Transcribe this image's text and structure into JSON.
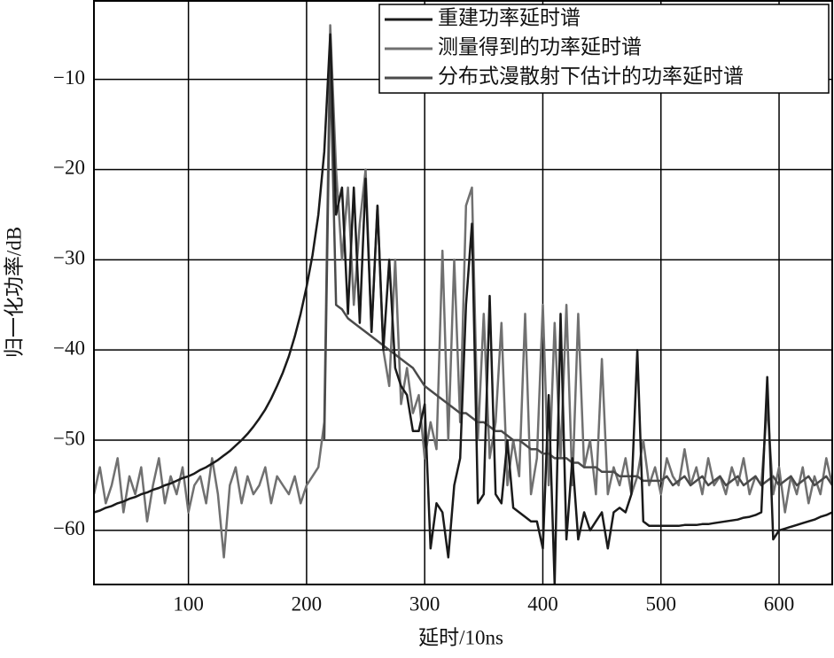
{
  "chart_data": {
    "type": "line",
    "x_label": "延时/10ns",
    "y_label": "归一化功率/dB",
    "x": [
      20,
      25,
      30,
      35,
      40,
      45,
      50,
      55,
      60,
      65,
      70,
      75,
      80,
      85,
      90,
      95,
      100,
      105,
      110,
      115,
      120,
      125,
      130,
      135,
      140,
      145,
      150,
      155,
      160,
      165,
      170,
      175,
      180,
      185,
      190,
      195,
      200,
      205,
      210,
      215,
      220,
      225,
      230,
      235,
      240,
      245,
      250,
      255,
      260,
      265,
      270,
      275,
      280,
      285,
      290,
      295,
      300,
      305,
      310,
      315,
      320,
      325,
      330,
      335,
      340,
      345,
      350,
      355,
      360,
      365,
      370,
      375,
      380,
      385,
      390,
      395,
      400,
      405,
      410,
      415,
      420,
      425,
      430,
      435,
      440,
      445,
      450,
      455,
      460,
      465,
      470,
      475,
      480,
      485,
      490,
      495,
      500,
      505,
      510,
      515,
      520,
      525,
      530,
      535,
      540,
      545,
      550,
      555,
      560,
      565,
      570,
      575,
      580,
      585,
      590,
      595,
      600,
      605,
      610,
      615,
      620,
      625,
      630,
      635,
      640,
      645
    ],
    "series": [
      {
        "name": "重建功率延时谱",
        "color": "#1a1a1a",
        "values": [
          -58,
          -57.8,
          -57.5,
          -57.3,
          -57,
          -56.8,
          -56.5,
          -56.3,
          -56,
          -55.8,
          -55.5,
          -55.3,
          -55,
          -54.8,
          -54.5,
          -54.2,
          -54,
          -53.7,
          -53.3,
          -53,
          -52.6,
          -52.2,
          -51.7,
          -51.2,
          -50.6,
          -50,
          -49.3,
          -48.5,
          -47.6,
          -46.6,
          -45.4,
          -44,
          -42.5,
          -40.7,
          -38.5,
          -36,
          -33,
          -29.5,
          -25,
          -18,
          -5,
          -25,
          -22,
          -36,
          -22,
          -37,
          -21,
          -38,
          -24,
          -40,
          -30,
          -42,
          -44,
          -45,
          -49,
          -49,
          -46,
          -62,
          -57,
          -58,
          -63,
          -55,
          -52,
          -35,
          -26,
          -57,
          -56,
          -34,
          -56,
          -57,
          -50,
          -57.5,
          -58,
          -58.5,
          -59,
          -59,
          -62,
          -45,
          -66,
          -36,
          -61,
          -52,
          -61,
          -58,
          -60,
          -59,
          -58,
          -62,
          -58,
          -57.5,
          -58,
          -56,
          -40,
          -59,
          -59.5,
          -59.5,
          -59.5,
          -59.5,
          -59.5,
          -59.5,
          -59.4,
          -59.4,
          -59.4,
          -59.3,
          -59.3,
          -59.2,
          -59.1,
          -59,
          -58.9,
          -58.8,
          -58.6,
          -58.5,
          -58.3,
          -58,
          -43,
          -61,
          -60,
          -59.8,
          -59.6,
          -59.4,
          -59.2,
          -59,
          -58.8,
          -58.5,
          -58.3,
          -58
        ]
      },
      {
        "name": "测量得到的功率延时谱",
        "color": "#707070",
        "values": [
          -56,
          -53,
          -57,
          -55,
          -52,
          -58,
          -54,
          -56,
          -53,
          -59,
          -55,
          -52,
          -57,
          -54,
          -56,
          -53,
          -58,
          -55,
          -54,
          -57,
          -52,
          -56,
          -63,
          -55,
          -53,
          -57,
          -54,
          -56,
          -55,
          -53,
          -57,
          -54,
          -55,
          -56,
          -54,
          -57,
          -55,
          -54,
          -53,
          -48,
          -4,
          -20,
          -30,
          -22,
          -35,
          -26,
          -20,
          -38,
          -24,
          -40,
          -44,
          -30,
          -46,
          -42,
          -47,
          -45,
          -52,
          -48,
          -51,
          -29,
          -50,
          -30,
          -48,
          -24,
          -22,
          -50,
          -36,
          -52,
          -48,
          -37,
          -55,
          -50,
          -54,
          -36,
          -56,
          -52,
          -35,
          -55,
          -37,
          -52,
          -35,
          -55,
          -36,
          -53,
          -50,
          -56,
          -41,
          -56,
          -53,
          -55,
          -52,
          -56,
          -54,
          -50,
          -55,
          -53,
          -56,
          -52,
          -54,
          -55,
          -51,
          -55,
          -53,
          -56,
          -52,
          -55,
          -54,
          -56,
          -53,
          -55,
          -52,
          -56,
          -54,
          -55,
          -46,
          -56,
          -53,
          -58,
          -54,
          -56,
          -53,
          -57,
          -54,
          -56,
          -52,
          -55
        ]
      },
      {
        "name": "分布式漫散射下估计的功率延时谱",
        "color": "#4a4a4a",
        "values": [
          null,
          null,
          null,
          null,
          null,
          null,
          null,
          null,
          null,
          null,
          null,
          null,
          null,
          null,
          null,
          null,
          null,
          null,
          null,
          null,
          null,
          null,
          null,
          null,
          null,
          null,
          null,
          null,
          null,
          null,
          null,
          null,
          null,
          null,
          null,
          null,
          null,
          null,
          null,
          -50,
          -8,
          -35,
          -35.5,
          -36.5,
          -37,
          -37.5,
          -38,
          -38.5,
          -39,
          -39.5,
          -40,
          -40.5,
          -41,
          -41.5,
          -42,
          -43,
          -44,
          -44.5,
          -45,
          -45.5,
          -46,
          -46.5,
          -47,
          -47,
          -47.5,
          -48,
          -48,
          -48.5,
          -49,
          -49,
          -49.5,
          -50,
          -50,
          -50.5,
          -51,
          -51,
          -51.5,
          -51.5,
          -52,
          -52,
          -52,
          -52.5,
          -52.5,
          -53,
          -53,
          -53,
          -53.5,
          -53.5,
          -53.5,
          -54,
          -54,
          -54,
          -54,
          -54.5,
          -54.5,
          -54.5,
          -54.5,
          -54,
          -55,
          -54.5,
          -54,
          -55,
          -54.5,
          -54,
          -55,
          -54.5,
          -54,
          -55,
          -54.5,
          -54,
          -55,
          -54.5,
          -54,
          -55,
          -54.5,
          -54,
          -55,
          -54.5,
          -54,
          -55,
          -54.5,
          -54,
          -55,
          -54.5,
          -54,
          -55
        ]
      }
    ],
    "xlim": [
      20,
      645
    ],
    "ylim": [
      -66,
      -1.3
    ],
    "xticks": [
      100,
      200,
      300,
      400,
      500,
      600
    ],
    "yticks": [
      {
        "value": -10,
        "label": "−10"
      },
      {
        "value": -20,
        "label": "−20"
      },
      {
        "value": -30,
        "label": "−30"
      },
      {
        "value": -40,
        "label": "−40"
      },
      {
        "value": -50,
        "label": "−50"
      },
      {
        "value": -60,
        "label": "−60"
      }
    ],
    "grid": true,
    "legend": "upper right"
  }
}
